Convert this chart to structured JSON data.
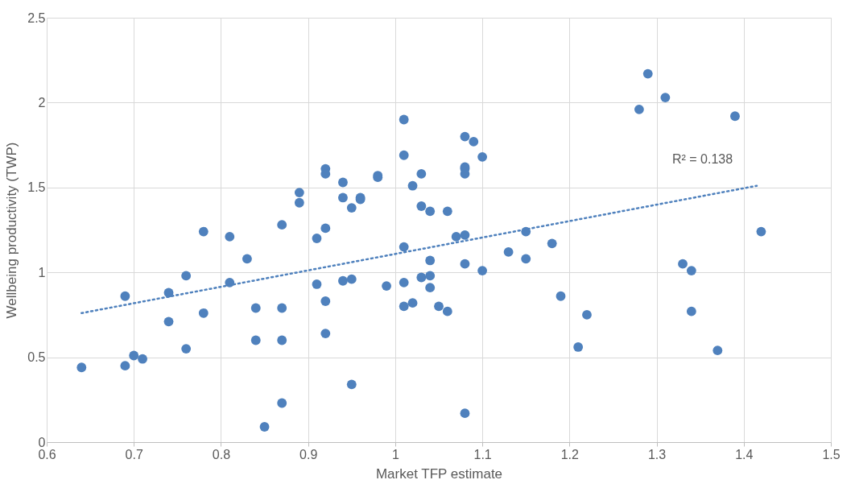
{
  "chart_data": {
    "type": "scatter",
    "xlabel": "Market TFP estimate",
    "ylabel": "Wellbeing productivity (TWP)",
    "xlim": [
      0.6,
      1.5
    ],
    "ylim": [
      0,
      2.5
    ],
    "xticks": [
      0.6,
      0.7,
      0.8,
      0.9,
      1,
      1.1,
      1.2,
      1.3,
      1.4,
      1.5
    ],
    "yticks": [
      0,
      0.5,
      1,
      1.5,
      2,
      2.5
    ],
    "grid": true,
    "annotations": [
      "R² = 0.138"
    ],
    "series": [
      {
        "type": "scatter",
        "marker": "circle",
        "color": "#4f81bd",
        "x": [
          0.64,
          0.69,
          0.7,
          0.71,
          0.69,
          0.74,
          0.74,
          0.76,
          0.76,
          0.78,
          0.78,
          0.81,
          0.81,
          0.83,
          0.85,
          0.84,
          0.84,
          0.87,
          0.87,
          0.87,
          0.87,
          0.89,
          0.89,
          0.91,
          0.91,
          0.92,
          0.92,
          0.92,
          0.92,
          0.92,
          0.94,
          0.94,
          0.94,
          0.95,
          0.95,
          0.95,
          0.96,
          0.96,
          0.98,
          0.98,
          0.99,
          1.01,
          1.01,
          1.01,
          1.01,
          1.01,
          1.02,
          1.02,
          1.03,
          1.03,
          1.03,
          1.04,
          1.04,
          1.04,
          1.04,
          1.05,
          1.06,
          1.06,
          1.07,
          1.08,
          1.08,
          1.08,
          1.08,
          1.08,
          1.08,
          1.09,
          1.08,
          1.1,
          1.1,
          1.13,
          1.15,
          1.15,
          1.18,
          1.19,
          1.21,
          1.22,
          1.28,
          1.29,
          1.31,
          1.33,
          1.34,
          1.34,
          1.37,
          1.39,
          1.42
        ],
        "values": [
          0.44,
          0.45,
          0.51,
          0.49,
          0.86,
          0.88,
          0.71,
          0.98,
          0.55,
          1.24,
          0.76,
          1.21,
          0.94,
          1.08,
          0.09,
          0.6,
          0.79,
          0.6,
          0.79,
          1.28,
          0.23,
          1.41,
          1.47,
          1.2,
          0.93,
          0.83,
          1.61,
          1.58,
          1.26,
          0.64,
          1.53,
          1.44,
          0.95,
          0.34,
          1.38,
          0.96,
          1.44,
          1.43,
          1.56,
          1.57,
          0.92,
          0.8,
          1.15,
          1.69,
          1.9,
          0.94,
          0.82,
          1.51,
          1.58,
          1.39,
          0.97,
          0.91,
          1.36,
          1.07,
          0.98,
          0.8,
          1.36,
          0.77,
          1.21,
          1.62,
          1.61,
          0.17,
          1.22,
          1.05,
          1.8,
          1.77,
          1.58,
          1.68,
          1.01,
          1.12,
          1.24,
          1.08,
          1.17,
          0.86,
          0.56,
          0.75,
          1.96,
          2.17,
          2.03,
          1.05,
          1.01,
          0.77,
          0.54,
          1.92,
          1.24
        ]
      },
      {
        "type": "line",
        "marker": "none",
        "color": "#4f81bd",
        "line_style": "dotted",
        "x": [
          0.64,
          1.415
        ],
        "values": [
          0.76,
          1.51
        ]
      }
    ]
  }
}
